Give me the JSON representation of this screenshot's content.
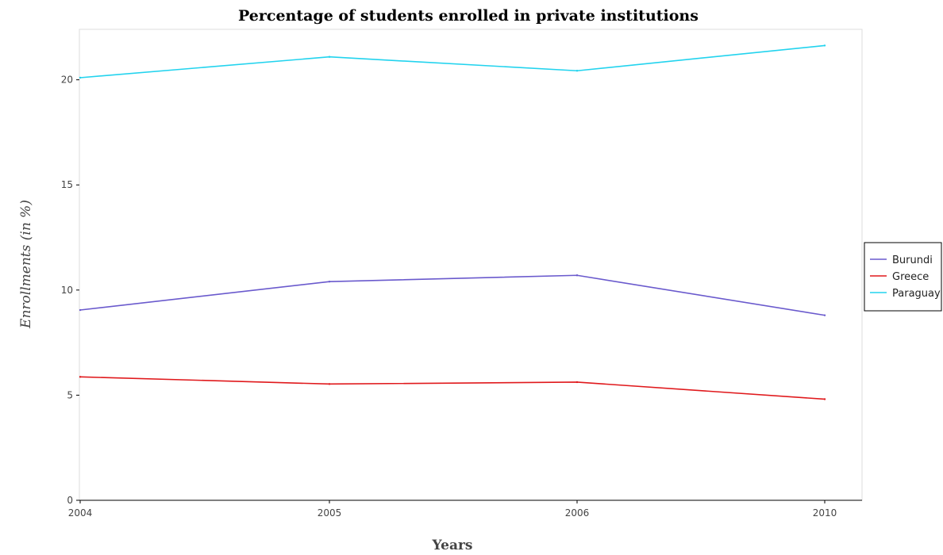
{
  "chart_data": {
    "type": "line",
    "title": "Percentage of students enrolled in private institutions",
    "xlabel": "Years",
    "ylabel": "Enrollments (in %)",
    "categories": [
      "2004",
      "2005",
      "2006",
      "2010"
    ],
    "ylim": [
      0,
      22.4
    ],
    "yticks": [
      0,
      5,
      10,
      15,
      20
    ],
    "grid": false,
    "legend_position": "right",
    "series": [
      {
        "name": "Burundi",
        "color": "#6a5acd",
        "values": [
          9.05,
          10.4,
          10.7,
          8.8
        ]
      },
      {
        "name": "Greece",
        "color": "#e0191c",
        "values": [
          5.87,
          5.53,
          5.62,
          4.81
        ]
      },
      {
        "name": "Paraguay",
        "color": "#22d3ee",
        "values": [
          20.1,
          21.09,
          20.43,
          21.63
        ]
      }
    ]
  }
}
